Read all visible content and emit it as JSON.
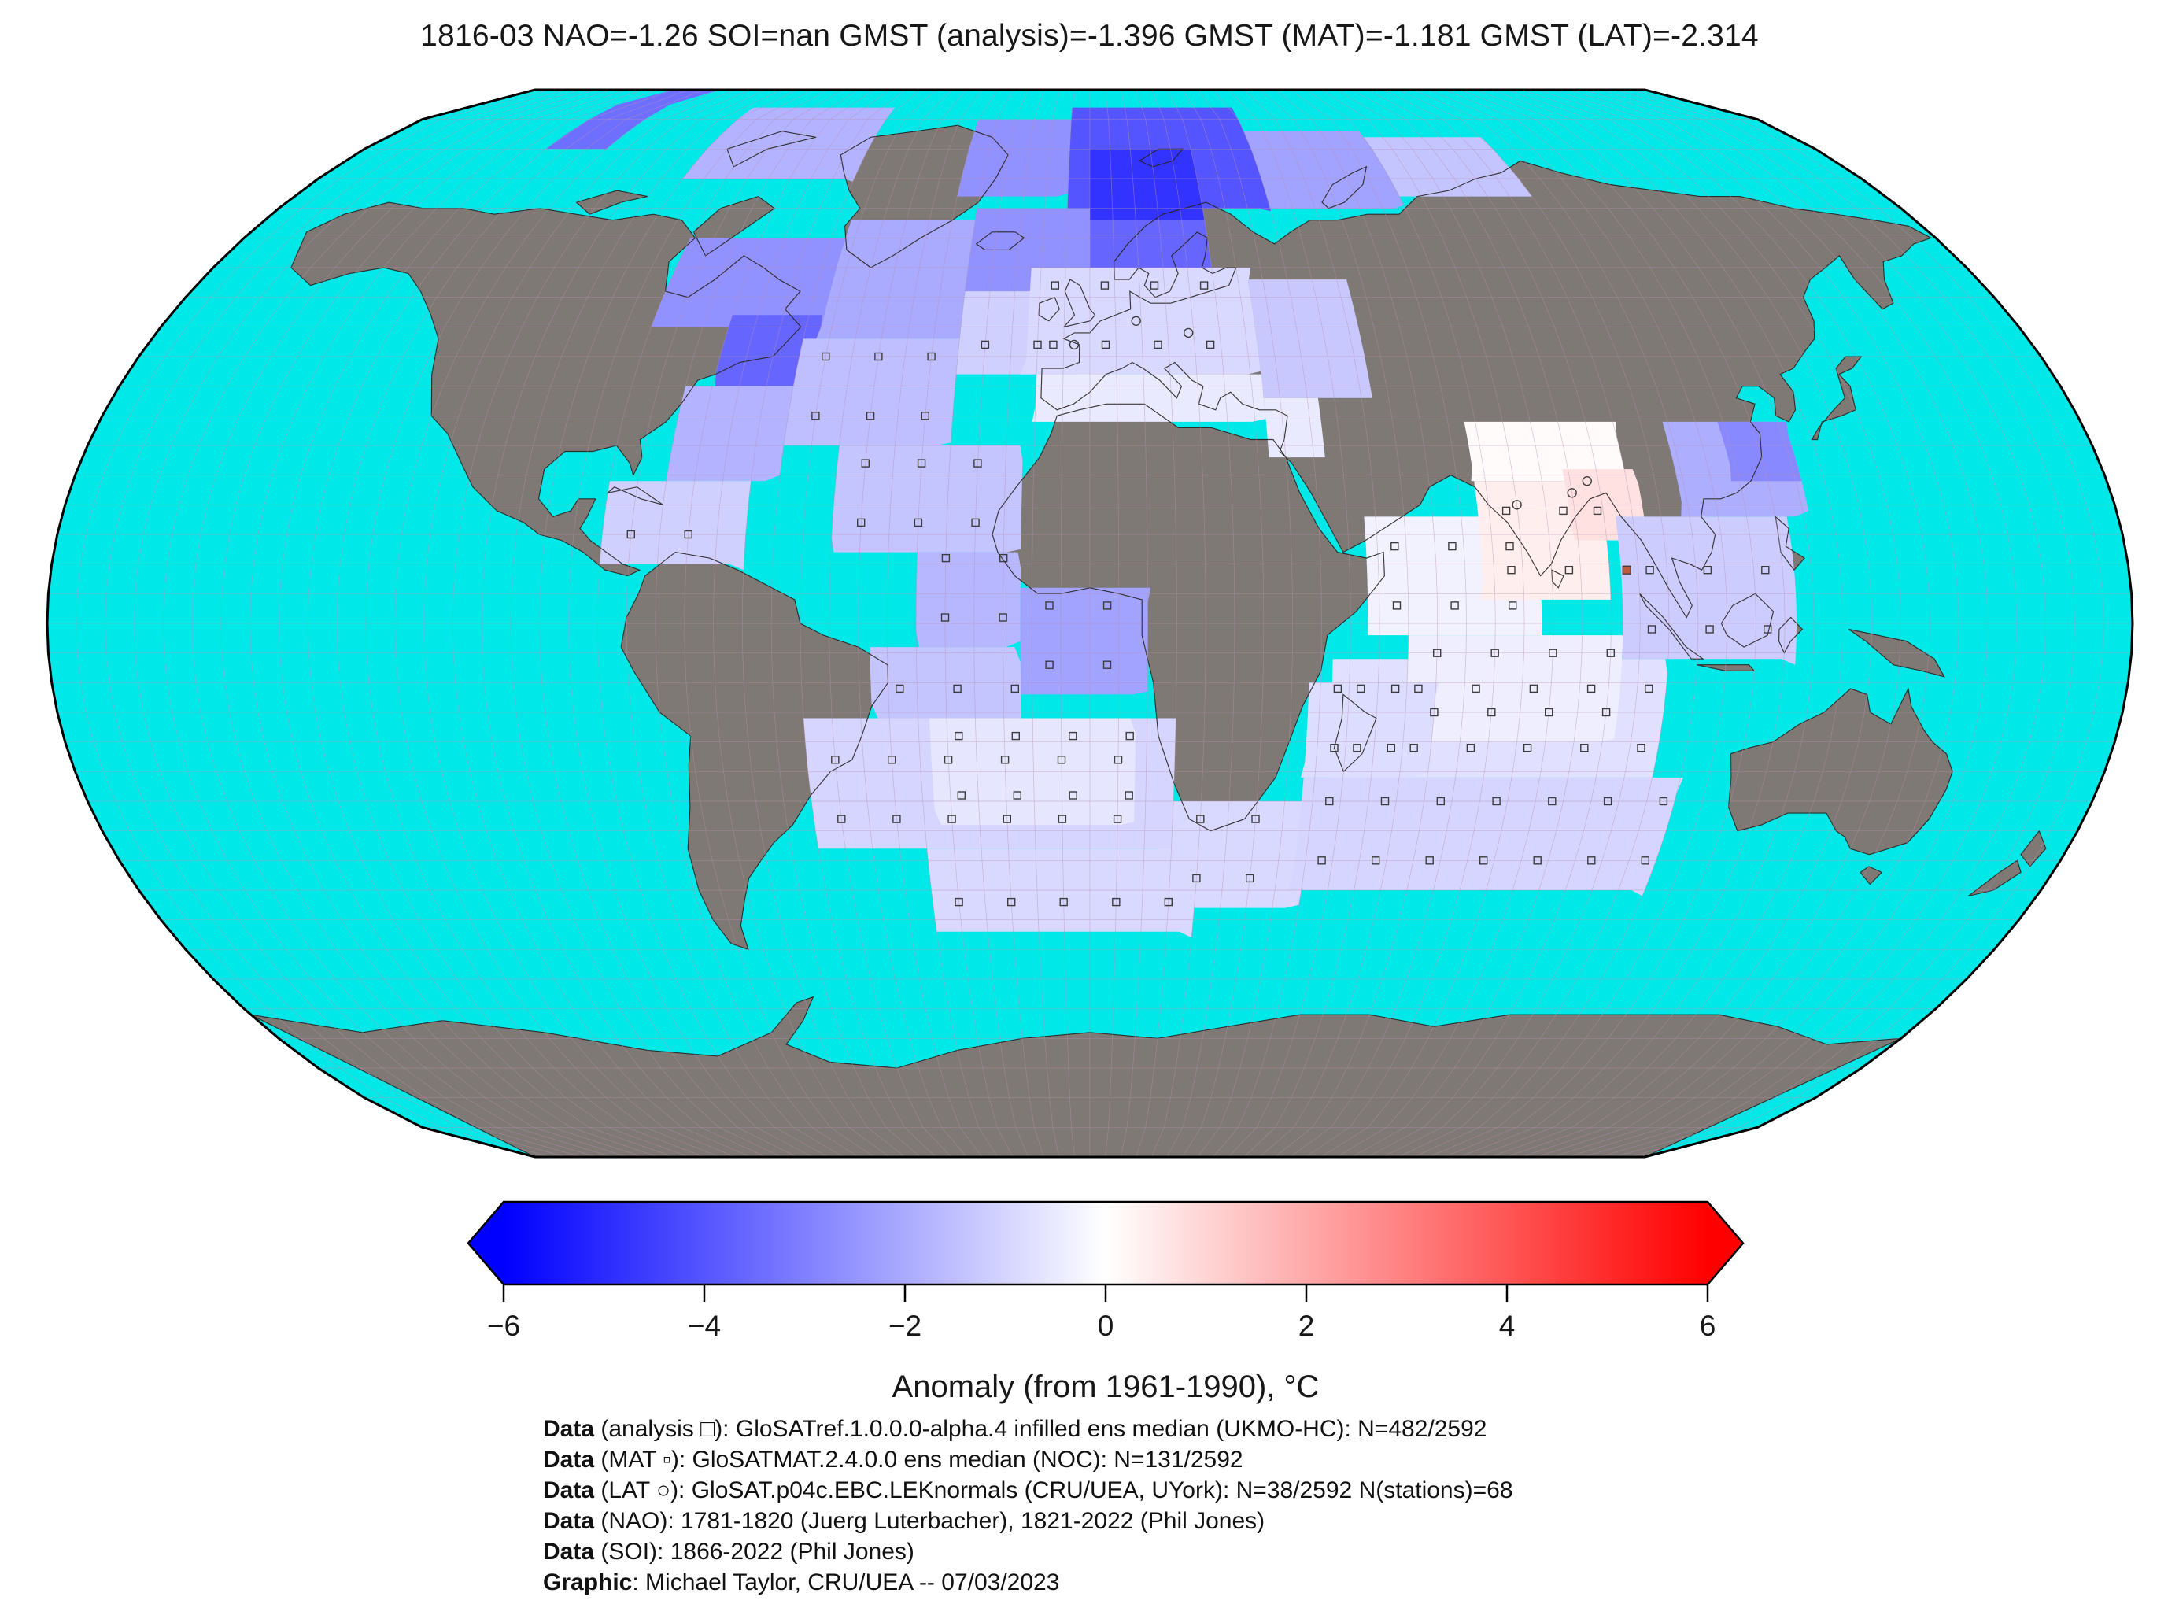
{
  "title": "1816-03 NAO=-1.26 SOI=nan GMST (analysis)=-1.396 GMST (MAT)=-1.181 GMST (LAT)=-2.314",
  "chart_data": {
    "type": "heatmap",
    "projection": "robinson-world-map",
    "title": "1816-03 NAO=-1.26 SOI=nan GMST (analysis)=-1.396 GMST (MAT)=-1.181 GMST (LAT)=-2.314",
    "stats": {
      "month": "1816-03",
      "NAO": -1.26,
      "SOI": "nan",
      "GMST_analysis": -1.396,
      "GMST_MAT": -1.181,
      "GMST_LAT": -2.314,
      "N_analysis": "482/2592",
      "N_MAT": "131/2592",
      "N_LAT": "38/2592",
      "N_stations": 68
    },
    "colorbar": {
      "label": "Anomaly (from 1961-1990), °C",
      "range": [
        -6,
        6
      ],
      "ticks": [
        -6,
        -4,
        -2,
        0,
        2,
        4,
        6
      ],
      "tick_labels": [
        "−6",
        "−4",
        "−2",
        "0",
        "2",
        "4",
        "6"
      ],
      "colormap": "blue-white-red",
      "extend": "both"
    },
    "palette": {
      "ocean": "#00e8e8",
      "land": "#7e7974",
      "coastline": "#26221f",
      "graticule": "#b98fae",
      "border": "#000000",
      "blue_end": "#0000ff",
      "red_end": "#ff0000"
    },
    "regions": [
      {
        "lon": [
          -135,
          -120
        ],
        "lat": [
          80,
          90
        ],
        "value": -3.4,
        "markers": false
      },
      {
        "lon": [
          -95,
          -55
        ],
        "lat": [
          75,
          87
        ],
        "value": -1.8,
        "markers": false
      },
      {
        "lon": [
          -30,
          -5
        ],
        "lat": [
          72,
          85
        ],
        "value": -2.6,
        "markers": false
      },
      {
        "lon": [
          -5,
          40
        ],
        "lat": [
          70,
          87
        ],
        "value": -4.0,
        "markers": false
      },
      {
        "lon": [
          0,
          25
        ],
        "lat": [
          66,
          80
        ],
        "value": -4.8,
        "markers": false
      },
      {
        "lon": [
          40,
          70
        ],
        "lat": [
          70,
          83
        ],
        "value": -2.2,
        "markers": false
      },
      {
        "lon": [
          70,
          100
        ],
        "lat": [
          72,
          82
        ],
        "value": -1.4,
        "markers": false
      },
      {
        "lon": [
          -85,
          -50
        ],
        "lat": [
          50,
          65
        ],
        "value": -2.6,
        "markers": false
      },
      {
        "lon": [
          -70,
          -52
        ],
        "lat": [
          40,
          52
        ],
        "value": -3.6,
        "markers": false
      },
      {
        "lon": [
          -52,
          -25
        ],
        "lat": [
          48,
          68
        ],
        "value": -2.0,
        "markers": false
      },
      {
        "lon": [
          -25,
          0
        ],
        "lat": [
          55,
          70
        ],
        "value": -2.6,
        "markers": false
      },
      {
        "lon": [
          0,
          25
        ],
        "lat": [
          55,
          68
        ],
        "value": -3.6,
        "markers": false
      },
      {
        "lon": [
          -55,
          -25
        ],
        "lat": [
          30,
          48
        ],
        "value": -1.5,
        "markers": true
      },
      {
        "lon": [
          -75,
          -55
        ],
        "lat": [
          24,
          40
        ],
        "value": -1.8,
        "markers": false
      },
      {
        "lon": [
          -25,
          0
        ],
        "lat": [
          42,
          56
        ],
        "value": -1.1,
        "markers": true
      },
      {
        "lon": [
          -85,
          -60
        ],
        "lat": [
          10,
          24
        ],
        "value": -1.1,
        "markers": true
      },
      {
        "lon": [
          -45,
          -12
        ],
        "lat": [
          12,
          30
        ],
        "value": -1.4,
        "markers": true
      },
      {
        "lon": [
          -30,
          -12
        ],
        "lat": [
          -4,
          12
        ],
        "value": -1.7,
        "markers": true
      },
      {
        "lon": [
          -12,
          10
        ],
        "lat": [
          -12,
          6
        ],
        "value": -2.2,
        "markers": true
      },
      {
        "lon": [
          -38,
          -12
        ],
        "lat": [
          -16,
          -4
        ],
        "value": -1.4,
        "markers": true
      },
      {
        "lon": [
          -12,
          32
        ],
        "lat": [
          42,
          60
        ],
        "value": -0.9,
        "markers": true
      },
      {
        "lon": [
          -10,
          32
        ],
        "lat": [
          34,
          42
        ],
        "value": -0.5,
        "markers": false
      },
      {
        "lon": [
          32,
          52
        ],
        "lat": [
          38,
          58
        ],
        "value": -1.3,
        "markers": false
      },
      {
        "lon": [
          32,
          42
        ],
        "lat": [
          28,
          38
        ],
        "value": -0.5,
        "markers": false
      },
      {
        "lon": [
          -50,
          15
        ],
        "lat": [
          -38,
          -16
        ],
        "value": -1.0,
        "markers": true
      },
      {
        "lon": [
          -28,
          8
        ],
        "lat": [
          -34,
          -16
        ],
        "value": -0.6,
        "markers": true
      },
      {
        "lon": [
          -30,
          20
        ],
        "lat": [
          -52,
          -38
        ],
        "value": -0.9,
        "markers": true
      },
      {
        "lon": [
          15,
          40
        ],
        "lat": [
          -48,
          -30
        ],
        "value": -0.9,
        "markers": true
      },
      {
        "lon": [
          38,
          105
        ],
        "lat": [
          -45,
          -26
        ],
        "value": -1.0,
        "markers": true
      },
      {
        "lon": [
          42,
          100
        ],
        "lat": [
          -26,
          -6
        ],
        "value": -0.7,
        "markers": true
      },
      {
        "lon": [
          55,
          92
        ],
        "lat": [
          -20,
          -2
        ],
        "value": -0.4,
        "markers": true
      },
      {
        "lon": [
          48,
          78
        ],
        "lat": [
          -2,
          18
        ],
        "value": -0.3,
        "markers": true
      },
      {
        "lon": [
          68,
          95
        ],
        "lat": [
          24,
          34
        ],
        "value": 0.1,
        "markers": false
      },
      {
        "lon": [
          68,
          90
        ],
        "lat": [
          4,
          24
        ],
        "value": 0.4,
        "markers": true
      },
      {
        "lon": [
          84,
          97
        ],
        "lat": [
          14,
          26
        ],
        "value": 0.7,
        "markers": true
      },
      {
        "lon": [
          92,
          122
        ],
        "lat": [
          -6,
          18
        ],
        "value": -1.2,
        "markers": true
      },
      {
        "lon": [
          104,
          126
        ],
        "lat": [
          18,
          34
        ],
        "value": -1.9,
        "markers": false
      },
      {
        "lon": [
          114,
          126
        ],
        "lat": [
          24,
          34
        ],
        "value": -2.8,
        "markers": false
      },
      {
        "lon": [
          38,
          60
        ],
        "lat": [
          -26,
          -10
        ],
        "value": -0.8,
        "markers": true
      }
    ],
    "markers": {
      "circles": [
        {
          "lon": -3,
          "lat": 47
        },
        {
          "lon": 9,
          "lat": 51
        },
        {
          "lon": 19,
          "lat": 49
        },
        {
          "lon": 75,
          "lat": 20
        },
        {
          "lon": 85,
          "lat": 22
        },
        {
          "lon": 88,
          "lat": 24
        }
      ],
      "squares_special": [
        {
          "lon": 93,
          "lat": 9,
          "color": "#c05a3c"
        }
      ]
    }
  },
  "footer": {
    "lines": [
      {
        "prefix": "Data",
        "rest": " (analysis □): GloSATref.1.0.0.0-alpha.4 infilled ens median (UKMO-HC): N=482/2592"
      },
      {
        "prefix": "Data",
        "rest": " (MAT ▫): GloSATMAT.2.4.0.0 ens median (NOC): N=131/2592"
      },
      {
        "prefix": "Data",
        "rest": " (LAT ○): GloSAT.p04c.EBC.LEKnormals (CRU/UEA, UYork): N=38/2592 N(stations)=68"
      },
      {
        "prefix": "Data",
        "rest": " (NAO): 1781-1820 (Juerg Luterbacher), 1821-2022 (Phil Jones)"
      },
      {
        "prefix": "Data",
        "rest": " (SOI): 1866-2022 (Phil Jones)"
      },
      {
        "prefix": "Graphic",
        "rest": ": Michael Taylor, CRU/UEA -- 07/03/2023"
      }
    ]
  }
}
